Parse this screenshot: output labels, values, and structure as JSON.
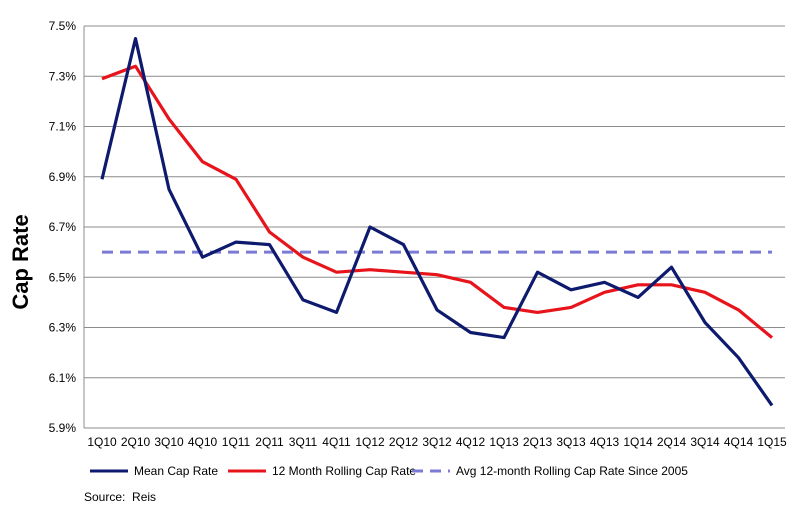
{
  "chart_data": {
    "type": "line",
    "title": "",
    "xlabel": "",
    "ylabel": "Cap Rate",
    "ylim": [
      5.9,
      7.5
    ],
    "yticks": [
      "5.9%",
      "6.1%",
      "6.3%",
      "6.5%",
      "6.7%",
      "6.9%",
      "7.1%",
      "7.3%",
      "7.5%"
    ],
    "ytick_values": [
      5.9,
      6.1,
      6.3,
      6.5,
      6.7,
      6.9,
      7.1,
      7.3,
      7.5
    ],
    "categories": [
      "1Q10",
      "2Q10",
      "3Q10",
      "4Q10",
      "1Q11",
      "2Q11",
      "3Q11",
      "4Q11",
      "1Q12",
      "2Q12",
      "3Q12",
      "4Q12",
      "1Q13",
      "2Q13",
      "3Q13",
      "4Q13",
      "1Q14",
      "2Q14",
      "3Q14",
      "4Q14",
      "1Q15"
    ],
    "grid": true,
    "legend_position": "bottom",
    "series": [
      {
        "name": "Mean Cap Rate",
        "color": "#0d1a6e",
        "style": "solid",
        "values": [
          6.89,
          7.45,
          6.85,
          6.58,
          6.64,
          6.63,
          6.41,
          6.36,
          6.7,
          6.63,
          6.37,
          6.28,
          6.26,
          6.52,
          6.45,
          6.48,
          6.42,
          6.54,
          6.32,
          6.18,
          5.99
        ]
      },
      {
        "name": "12 Month Rolling Cap Rate",
        "color": "#e8141c",
        "style": "solid",
        "values": [
          7.29,
          7.34,
          7.13,
          6.96,
          6.89,
          6.68,
          6.58,
          6.52,
          6.53,
          6.52,
          6.51,
          6.48,
          6.38,
          6.36,
          6.38,
          6.44,
          6.47,
          6.47,
          6.44,
          6.37,
          6.26
        ]
      },
      {
        "name": "Avg 12-month Rolling Cap Rate Since 2005",
        "color": "#7b7bd6",
        "style": "dashed",
        "values": [
          6.6,
          6.6,
          6.6,
          6.6,
          6.6,
          6.6,
          6.6,
          6.6,
          6.6,
          6.6,
          6.6,
          6.6,
          6.6,
          6.6,
          6.6,
          6.6,
          6.6,
          6.6,
          6.6,
          6.6,
          6.6
        ]
      }
    ]
  },
  "source": {
    "label": "Source:",
    "value": "Reis"
  }
}
